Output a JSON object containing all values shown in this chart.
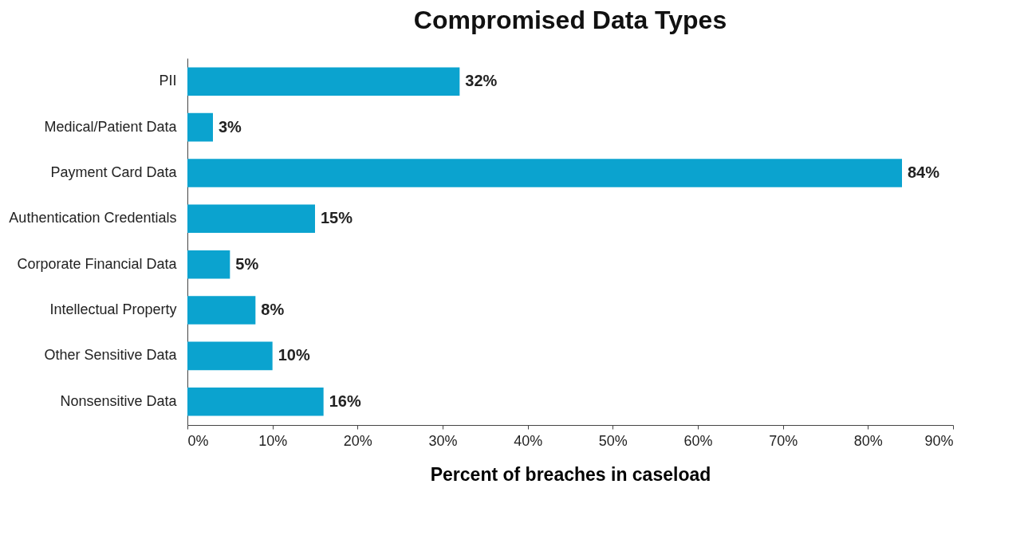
{
  "chart_data": {
    "type": "bar",
    "orientation": "horizontal",
    "title": "Compromised Data Types",
    "xlabel": "Percent of breaches in caseload",
    "categories": [
      "PII",
      "Medical/Patient Data",
      "Payment Card Data",
      "Authentication Credentials",
      "Corporate Financial Data",
      "Intellectual Property",
      "Other Sensitive Data",
      "Nonsensitive Data"
    ],
    "values": [
      32,
      3,
      84,
      15,
      5,
      8,
      10,
      16
    ],
    "value_labels": [
      "32%",
      "3%",
      "84%",
      "15%",
      "5%",
      "8%",
      "10%",
      "16%"
    ],
    "color": "#0ba3cf",
    "xlim": [
      0,
      90
    ],
    "xticks": [
      {
        "value": 0,
        "label": "0%"
      },
      {
        "value": 10,
        "label": "10%"
      },
      {
        "value": 20,
        "label": "20%"
      },
      {
        "value": 30,
        "label": "30%"
      },
      {
        "value": 40,
        "label": "40%"
      },
      {
        "value": 50,
        "label": "50%"
      },
      {
        "value": 60,
        "label": "60%"
      },
      {
        "value": 70,
        "label": "70%"
      },
      {
        "value": 80,
        "label": "80%"
      },
      {
        "value": 90,
        "label": "90%"
      }
    ],
    "grid": false
  }
}
